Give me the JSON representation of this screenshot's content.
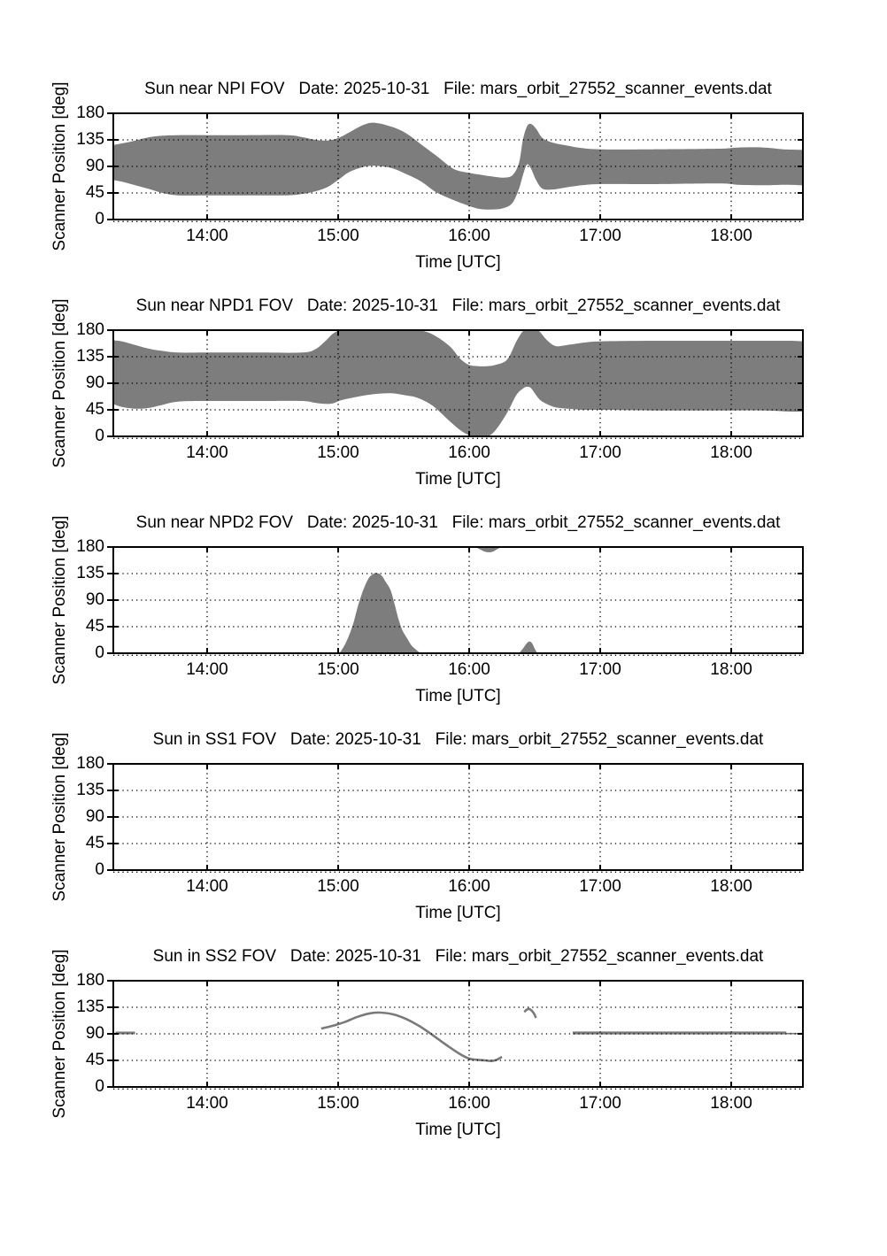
{
  "figure": {
    "background": "#ffffff",
    "ylabel": "Scanner Position [deg]",
    "xlabel": "Time [UTC]",
    "ytick_labels": [
      "0",
      "45",
      "90",
      "135",
      "180"
    ],
    "ytick_values": [
      0,
      45,
      90,
      135,
      180
    ],
    "xtick_labels": [
      "14:00",
      "15:00",
      "16:00",
      "17:00",
      "18:00"
    ],
    "xtick_values": [
      14,
      15,
      16,
      17,
      18
    ],
    "xlim": [
      13.284,
      18.547
    ],
    "ylim": [
      0,
      180
    ],
    "grid": "dotted",
    "colors": {
      "band_fill": "#7d7d7d",
      "curve": "#7a7a7a",
      "axis": "#000000",
      "grid_dots": "#000000",
      "text": "#000000",
      "background": "#ffffff"
    }
  },
  "chart_data": [
    {
      "type": "band",
      "title": "Sun near NPI FOV   Date: 2025-10-31   File: mars_orbit_27552_scanner_events.dat",
      "instrument": "NPI",
      "date": "2025-10-31",
      "file": "mars_orbit_27552_scanner_events.dat",
      "series": [
        {
          "name": "sun-near-fov-band",
          "type": "band",
          "t": [
            13.28,
            13.35,
            13.42,
            13.55,
            13.66,
            13.78,
            14.0,
            14.3,
            14.61,
            14.72,
            14.83,
            14.92,
            15.0,
            15.08,
            15.19,
            15.28,
            15.41,
            15.52,
            15.63,
            15.75,
            15.88,
            16.0,
            16.08,
            16.17,
            16.26,
            16.33,
            16.38,
            16.41,
            16.44,
            16.47,
            16.51,
            16.56,
            16.64,
            16.73,
            16.86,
            17.0,
            17.4,
            17.9,
            18.05,
            18.25,
            18.4,
            18.55
          ],
          "upper": [
            126,
            129,
            132,
            139,
            142,
            143,
            143,
            143,
            143,
            140,
            135,
            134,
            138,
            147,
            160,
            164,
            157,
            146,
            128,
            108,
            86,
            79,
            76,
            73,
            71,
            75,
            96,
            135,
            157,
            162,
            154,
            138,
            130,
            126,
            121,
            119,
            119,
            120,
            122,
            122,
            119,
            118
          ],
          "lower": [
            67,
            64,
            60,
            52,
            45,
            41,
            41,
            41,
            41,
            43,
            48,
            55,
            67,
            80,
            89,
            91,
            87,
            77,
            65,
            46,
            33,
            23,
            18,
            17,
            19,
            28,
            52,
            75,
            93,
            87,
            67,
            52,
            51,
            54,
            58,
            60,
            60,
            61,
            59,
            58,
            59,
            58
          ]
        }
      ]
    },
    {
      "type": "band",
      "title": "Sun near NPD1 FOV   Date: 2025-10-31   File: mars_orbit_27552_scanner_events.dat",
      "instrument": "NPD1",
      "date": "2025-10-31",
      "file": "mars_orbit_27552_scanner_events.dat",
      "series": [
        {
          "name": "sun-near-fov-band",
          "type": "band",
          "t": [
            13.28,
            13.35,
            13.45,
            13.55,
            13.65,
            13.78,
            14.0,
            14.4,
            14.72,
            14.82,
            14.9,
            14.96,
            15.02,
            15.12,
            15.25,
            15.4,
            15.5,
            15.61,
            15.72,
            15.85,
            15.93,
            16.0,
            16.07,
            16.14,
            16.2,
            16.29,
            16.36,
            16.41,
            16.44,
            16.47,
            16.51,
            16.54,
            16.59,
            16.66,
            16.75,
            16.88,
            17.0,
            17.4,
            17.9,
            18.25,
            18.45,
            18.55
          ],
          "upper": [
            163,
            161,
            155,
            149,
            145,
            142,
            142,
            142,
            142,
            147,
            161,
            174,
            180,
            180,
            180,
            180,
            180,
            180,
            173,
            153,
            132,
            121,
            119,
            119,
            121,
            130,
            161,
            178,
            180,
            180,
            180,
            177,
            164,
            153,
            155,
            159,
            161,
            162,
            162,
            162,
            162,
            161
          ],
          "lower": [
            55,
            50,
            47,
            48,
            53,
            59,
            60,
            60,
            60,
            57,
            55,
            56,
            61,
            66,
            71,
            73,
            70,
            65,
            52,
            26,
            11,
            2,
            0,
            0,
            10,
            40,
            70,
            81,
            84,
            82,
            70,
            62,
            55,
            49,
            47,
            45,
            45,
            44,
            44,
            44,
            42,
            42
          ]
        }
      ]
    },
    {
      "type": "area",
      "title": "Sun near NPD2 FOV   Date: 2025-10-31   File: mars_orbit_27552_scanner_events.dat",
      "instrument": "NPD2",
      "date": "2025-10-31",
      "file": "mars_orbit_27552_scanner_events.dat",
      "series": [
        {
          "name": "sun-near-fov-peak",
          "type": "area",
          "t": [
            15.01,
            15.05,
            15.09,
            15.12,
            15.15,
            15.19,
            15.23,
            15.26,
            15.29,
            15.33,
            15.36,
            15.4,
            15.43,
            15.46,
            15.49,
            15.53,
            15.56,
            15.6,
            15.63
          ],
          "v": [
            0,
            14,
            34,
            54,
            79,
            106,
            126,
            133,
            136,
            132,
            122,
            107,
            84,
            58,
            39,
            24,
            13,
            5,
            0
          ]
        },
        {
          "name": "sun-near-fov-top-pocket",
          "type": "top_pocket",
          "t": [
            16.05,
            16.09,
            16.12,
            16.15,
            16.18,
            16.21,
            16.25
          ],
          "lower": [
            180,
            175,
            172,
            171,
            172,
            176,
            180
          ]
        },
        {
          "name": "sun-near-fov-bump",
          "type": "area",
          "t": [
            16.38,
            16.41,
            16.44,
            16.46,
            16.48,
            16.5,
            16.52
          ],
          "v": [
            0,
            8,
            17,
            20,
            17,
            8,
            0
          ]
        }
      ]
    },
    {
      "type": "line",
      "title": "Sun in SS1 FOV   Date: 2025-10-31   File: mars_orbit_27552_scanner_events.dat",
      "instrument": "SS1",
      "date": "2025-10-31",
      "file": "mars_orbit_27552_scanner_events.dat",
      "series": []
    },
    {
      "type": "line",
      "title": "Sun in SS2 FOV   Date: 2025-10-31   File: mars_orbit_27552_scanner_events.dat",
      "instrument": "SS2",
      "date": "2025-10-31",
      "file": "mars_orbit_27552_scanner_events.dat",
      "series": [
        {
          "name": "sun-in-fov-track-1",
          "type": "line",
          "width": 3.0,
          "points": [
            [
              13.3,
              91.5
            ],
            [
              13.45,
              91.5
            ]
          ]
        },
        {
          "name": "sun-in-fov-track-2",
          "type": "line",
          "width": 2.6,
          "points": [
            [
              14.87,
              99
            ],
            [
              14.95,
              103
            ],
            [
              15.05,
              110
            ],
            [
              15.15,
              119
            ],
            [
              15.25,
              125
            ],
            [
              15.32,
              126
            ],
            [
              15.42,
              123
            ],
            [
              15.52,
              115
            ],
            [
              15.62,
              103
            ],
            [
              15.72,
              88
            ],
            [
              15.82,
              72
            ],
            [
              15.92,
              57
            ],
            [
              16.0,
              48
            ],
            [
              16.06,
              46
            ],
            [
              16.12,
              45
            ],
            [
              16.17,
              44
            ],
            [
              16.21,
              46
            ],
            [
              16.25,
              51
            ]
          ]
        },
        {
          "name": "sun-in-fov-track-3",
          "type": "line",
          "width": 2.6,
          "points": [
            [
              16.42,
              127
            ],
            [
              16.44,
              131
            ],
            [
              16.46,
              132
            ],
            [
              16.49,
              126
            ],
            [
              16.51,
              117
            ]
          ]
        },
        {
          "name": "sun-in-fov-track-4",
          "type": "line",
          "width": 3.2,
          "points": [
            [
              16.79,
              91.5
            ],
            [
              18.42,
              91.5
            ]
          ]
        },
        {
          "name": "sun-in-fov-track-5",
          "type": "line",
          "width": 1.6,
          "points": [
            [
              18.42,
              90.5
            ],
            [
              18.54,
              90.5
            ]
          ]
        }
      ]
    }
  ]
}
